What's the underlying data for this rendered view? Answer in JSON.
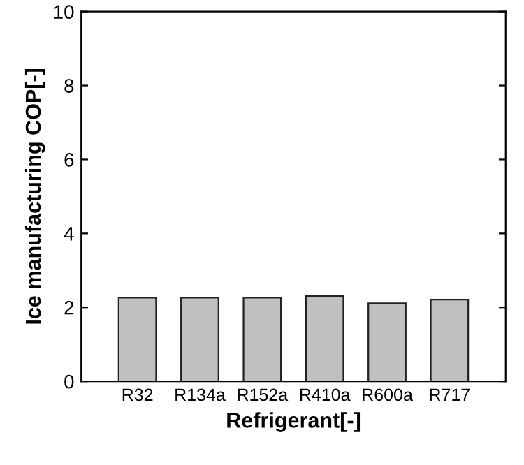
{
  "chart_data": {
    "type": "bar",
    "xlabel": "Refrigerant[-]",
    "ylabel": "Ice manufacturing COP[-]",
    "categories": [
      "R32",
      "R134a",
      "R152a",
      "R410a",
      "R600a",
      "R717"
    ],
    "values": [
      2.26,
      2.26,
      2.26,
      2.31,
      2.11,
      2.21
    ],
    "color": "#c0c0c0",
    "ylim": [
      0,
      10
    ],
    "yticks": [
      0,
      2,
      4,
      6,
      8,
      10
    ],
    "grid": false
  }
}
